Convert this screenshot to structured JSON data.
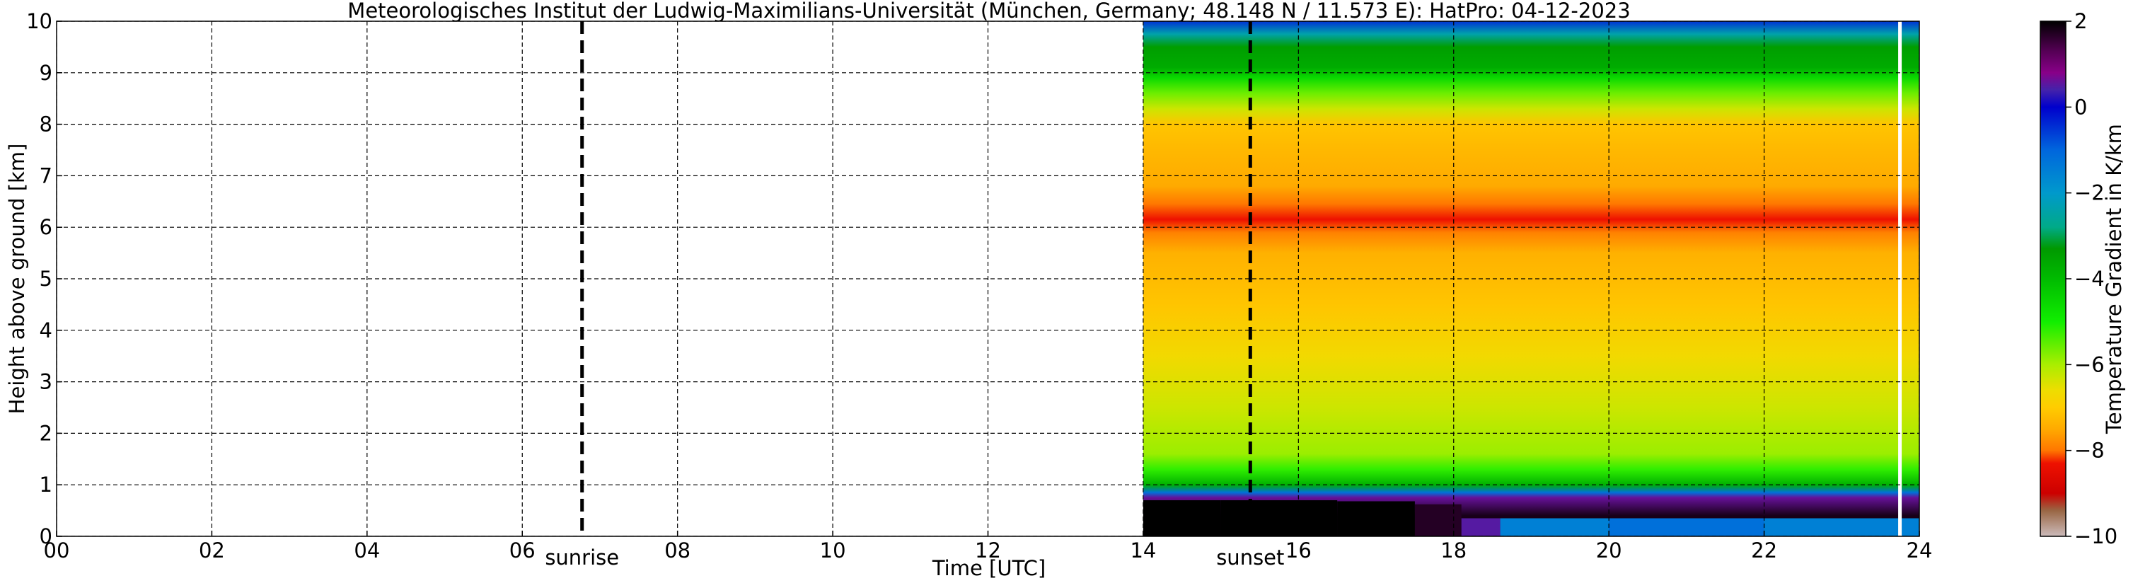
{
  "chart_data": {
    "type": "heatmap",
    "title": "Meteorologisches Institut der Ludwig-Maximilians-Universität (München, Germany; 48.148 N / 11.573 E):    HatPro: 04-12-2023",
    "xlabel": "Time [UTC]",
    "ylabel": "Height above ground [km]",
    "x_ticks": [
      "00",
      "02",
      "04",
      "06",
      "08",
      "10",
      "12",
      "14",
      "16",
      "18",
      "20",
      "22",
      "24"
    ],
    "y_ticks": [
      "0",
      "1",
      "2",
      "3",
      "4",
      "5",
      "6",
      "7",
      "8",
      "9",
      "10"
    ],
    "xlim": [
      0,
      24
    ],
    "ylim": [
      0,
      10
    ],
    "grid": true,
    "data_start_hour": 14,
    "data_end_hour": 24,
    "gap_line_hour": 23.75,
    "markers": [
      {
        "label": "sunrise",
        "hour": 6.77
      },
      {
        "label": "sunset",
        "hour": 15.38
      }
    ],
    "colorbar": {
      "label": "Temperature Gradient in K/km",
      "ticks": [
        "2",
        "0",
        "−2",
        "−4",
        "−6",
        "−8",
        "−10"
      ],
      "range": [
        -10,
        2
      ],
      "stops": [
        {
          "value": 2,
          "color": "#000000"
        },
        {
          "value": 1.3,
          "color": "#550055"
        },
        {
          "value": 0.8,
          "color": "#880088"
        },
        {
          "value": 0.4,
          "color": "#4422aa"
        },
        {
          "value": 0,
          "color": "#0000cc"
        },
        {
          "value": -1,
          "color": "#0066dd"
        },
        {
          "value": -2,
          "color": "#0099cc"
        },
        {
          "value": -2.8,
          "color": "#00aa88"
        },
        {
          "value": -3.3,
          "color": "#009900"
        },
        {
          "value": -4,
          "color": "#00bb00"
        },
        {
          "value": -5,
          "color": "#11ee00"
        },
        {
          "value": -6,
          "color": "#aaee00"
        },
        {
          "value": -6.6,
          "color": "#eedd00"
        },
        {
          "value": -7,
          "color": "#ffcc00"
        },
        {
          "value": -7.5,
          "color": "#ffaa00"
        },
        {
          "value": -8,
          "color": "#ff7700"
        },
        {
          "value": -8.3,
          "color": "#ee1100"
        },
        {
          "value": -9,
          "color": "#cc0000"
        },
        {
          "value": -9.4,
          "color": "#996644"
        },
        {
          "value": -10,
          "color": "#ccbbbb"
        }
      ]
    },
    "profile": [
      {
        "height": 0.0,
        "value": 1.8
      },
      {
        "height": 0.4,
        "value": 1.8
      },
      {
        "height": 0.75,
        "value": 0.6
      },
      {
        "height": 0.85,
        "value": -1.2
      },
      {
        "height": 1.0,
        "value": -3.8
      },
      {
        "height": 1.3,
        "value": -5.2
      },
      {
        "height": 1.6,
        "value": -5.9
      },
      {
        "height": 2.5,
        "value": -6.3
      },
      {
        "height": 3.5,
        "value": -6.7
      },
      {
        "height": 4.5,
        "value": -7.1
      },
      {
        "height": 5.5,
        "value": -7.4
      },
      {
        "height": 5.9,
        "value": -7.9
      },
      {
        "height": 6.15,
        "value": -8.3
      },
      {
        "height": 6.45,
        "value": -8.0
      },
      {
        "height": 6.8,
        "value": -7.5
      },
      {
        "height": 7.5,
        "value": -7.3
      },
      {
        "height": 8.0,
        "value": -7.1
      },
      {
        "height": 8.3,
        "value": -6.3
      },
      {
        "height": 8.6,
        "value": -5.6
      },
      {
        "height": 8.9,
        "value": -4.6
      },
      {
        "height": 9.1,
        "value": -3.7
      },
      {
        "height": 9.5,
        "value": -3.4
      },
      {
        "height": 9.75,
        "value": -2.4
      },
      {
        "height": 10.0,
        "value": -0.5
      }
    ],
    "surface_layer": [
      {
        "hour": 14.0,
        "top_km": 0.65,
        "value": 2.0
      },
      {
        "hour": 15.0,
        "top_km": 0.7,
        "value": 2.0
      },
      {
        "hour": 16.5,
        "top_km": 0.68,
        "value": 2.0
      },
      {
        "hour": 17.5,
        "top_km": 0.62,
        "value": 1.7
      },
      {
        "hour": 18.1,
        "top_km": 0.35,
        "value": 0.5
      },
      {
        "hour": 18.6,
        "top_km": 0.3,
        "value": -1.5
      },
      {
        "hour": 20.0,
        "top_km": 0.35,
        "value": -1.2
      },
      {
        "hour": 22.0,
        "top_km": 0.35,
        "value": -1.5
      },
      {
        "hour": 24.0,
        "top_km": 0.25,
        "value": -4.0
      }
    ]
  }
}
